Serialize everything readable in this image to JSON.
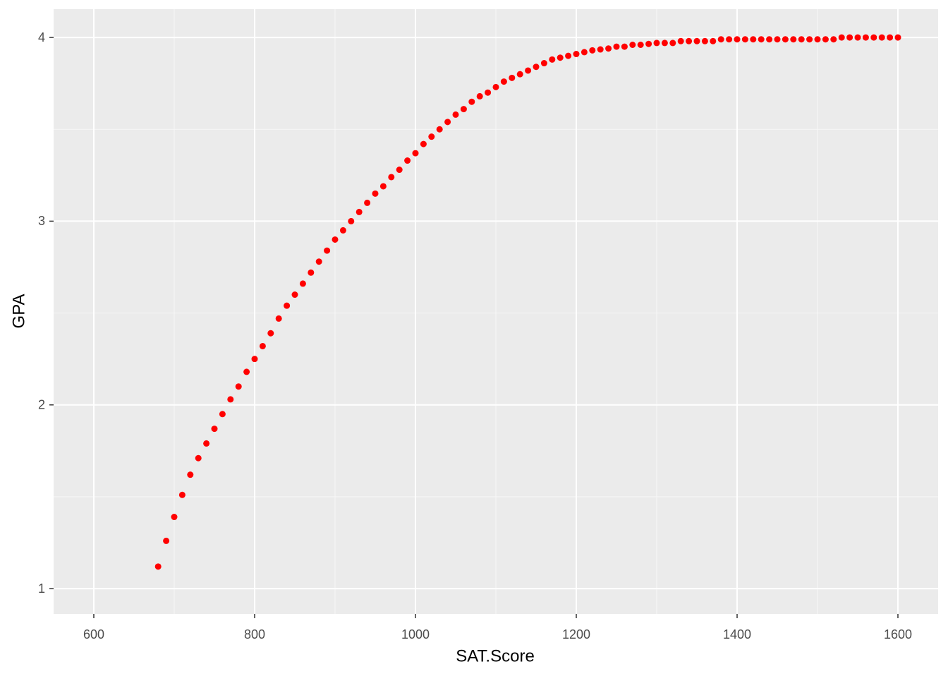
{
  "chart_data": {
    "type": "scatter",
    "xlabel": "SAT.Score",
    "ylabel": "GPA",
    "xlim": [
      550,
      1650
    ],
    "ylim": [
      0.862,
      4.154
    ],
    "xticks": [
      600,
      800,
      1000,
      1200,
      1400,
      1600
    ],
    "yticks": [
      1,
      2,
      3,
      4
    ],
    "grid": true,
    "series": [
      {
        "color": "#ff0000",
        "x": [
          680,
          690,
          700,
          710,
          720,
          730,
          740,
          750,
          760,
          770,
          780,
          790,
          800,
          810,
          820,
          830,
          840,
          850,
          860,
          870,
          880,
          890,
          900,
          910,
          920,
          930,
          940,
          950,
          960,
          970,
          980,
          990,
          1000,
          1010,
          1020,
          1030,
          1040,
          1050,
          1060,
          1070,
          1080,
          1090,
          1100,
          1110,
          1120,
          1130,
          1140,
          1150,
          1160,
          1170,
          1180,
          1190,
          1200,
          1210,
          1220,
          1230,
          1240,
          1250,
          1260,
          1270,
          1280,
          1290,
          1300,
          1310,
          1320,
          1330,
          1340,
          1350,
          1360,
          1370,
          1380,
          1390,
          1400,
          1410,
          1420,
          1430,
          1440,
          1450,
          1460,
          1470,
          1480,
          1490,
          1500,
          1510,
          1520,
          1530,
          1540,
          1550,
          1560,
          1570,
          1580,
          1590,
          1600
        ],
        "values": [
          1.12,
          1.26,
          1.39,
          1.51,
          1.62,
          1.71,
          1.79,
          1.87,
          1.95,
          2.03,
          2.1,
          2.18,
          2.25,
          2.32,
          2.39,
          2.47,
          2.54,
          2.6,
          2.66,
          2.72,
          2.78,
          2.84,
          2.9,
          2.95,
          3.0,
          3.05,
          3.1,
          3.15,
          3.19,
          3.24,
          3.28,
          3.33,
          3.37,
          3.42,
          3.46,
          3.5,
          3.54,
          3.58,
          3.61,
          3.65,
          3.68,
          3.7,
          3.73,
          3.76,
          3.78,
          3.8,
          3.82,
          3.84,
          3.86,
          3.88,
          3.89,
          3.9,
          3.91,
          3.92,
          3.93,
          3.935,
          3.94,
          3.95,
          3.95,
          3.96,
          3.96,
          3.965,
          3.97,
          3.97,
          3.97,
          3.98,
          3.98,
          3.98,
          3.98,
          3.98,
          3.99,
          3.99,
          3.99,
          3.99,
          3.99,
          3.99,
          3.99,
          3.99,
          3.99,
          3.99,
          3.99,
          3.99,
          3.99,
          3.99,
          3.99,
          4.0,
          4.0,
          4.0,
          4.0,
          4.0,
          4.0,
          4.0,
          4.0
        ]
      }
    ]
  }
}
